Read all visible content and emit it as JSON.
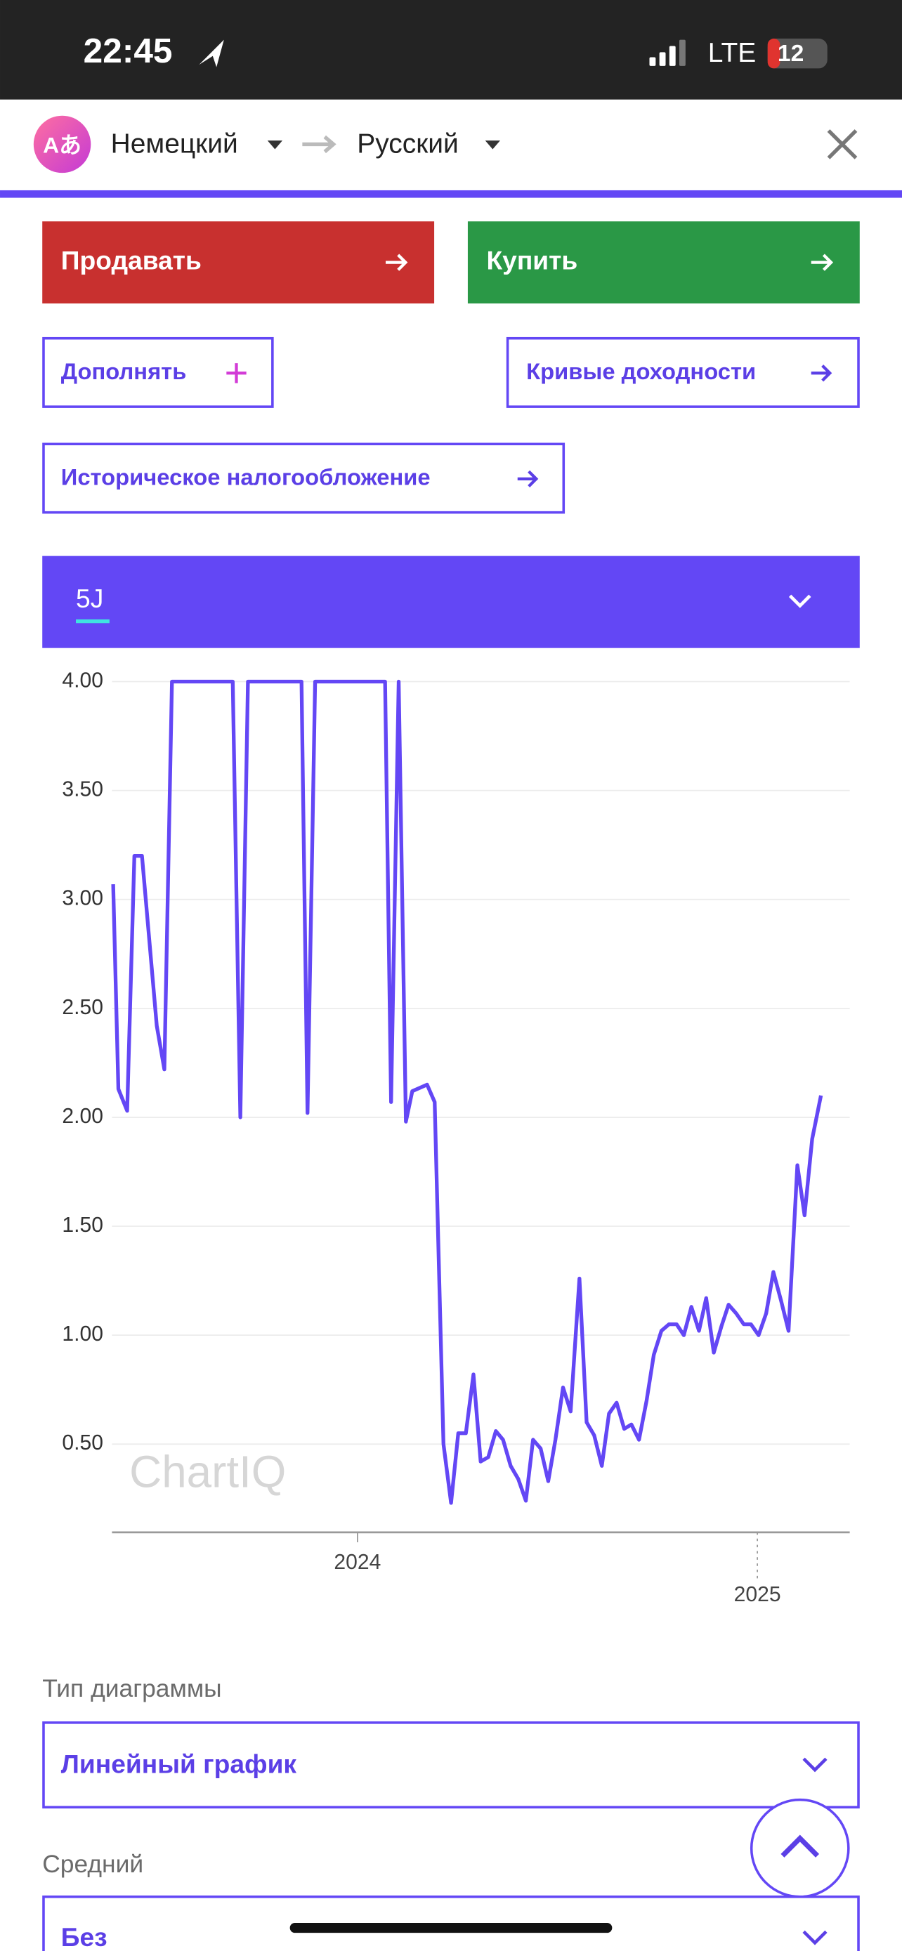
{
  "status_bar": {
    "time": "22:45",
    "network": "LTE",
    "battery": "12"
  },
  "translate_bar": {
    "source_language": "Немецкий",
    "target_language": "Русский"
  },
  "buttons": {
    "sell": "Продавать",
    "buy": "Купить",
    "add": "Дополнять",
    "yield_curves": "Кривые доходности",
    "historical_taxation": "Историческое налогообложение"
  },
  "period_selector": {
    "label": "5J"
  },
  "chart_data": {
    "type": "line",
    "watermark": "ChartIQ",
    "x": [
      2023.389,
      2023.402,
      2023.424,
      2023.442,
      2023.461,
      2023.498,
      2023.517,
      2023.536,
      2023.688,
      2023.707,
      2023.726,
      2023.86,
      2023.875,
      2023.894,
      2024.069,
      2024.084,
      2024.103,
      2024.121,
      2024.137,
      2024.174,
      2024.193,
      2024.215,
      2024.234,
      2024.252,
      2024.271,
      2024.29,
      2024.308,
      2024.327,
      2024.346,
      2024.364,
      2024.383,
      2024.402,
      2024.421,
      2024.439,
      2024.458,
      2024.477,
      2024.495,
      2024.514,
      2024.533,
      2024.555,
      2024.573,
      2024.592,
      2024.611,
      2024.629,
      2024.648,
      2024.667,
      2024.685,
      2024.704,
      2024.723,
      2024.741,
      2024.76,
      2024.779,
      2024.798,
      2024.816,
      2024.835,
      2024.854,
      2024.872,
      2024.891,
      2024.91,
      2024.928,
      2024.947,
      2024.966,
      2024.984,
      2025.003,
      2025.022,
      2025.04,
      2025.059,
      2025.078,
      2025.1,
      2025.118,
      2025.137,
      2025.159
    ],
    "series": [
      {
        "color": "#6347f5",
        "values": [
          3.07,
          2.13,
          2.03,
          3.2,
          3.2,
          2.42,
          2.22,
          4.0,
          4.0,
          2.0,
          4.0,
          4.0,
          2.02,
          4.0,
          4.0,
          2.07,
          4.0,
          1.98,
          2.12,
          2.15,
          2.07,
          0.5,
          0.23,
          0.55,
          0.55,
          0.82,
          0.42,
          0.44,
          0.56,
          0.52,
          0.4,
          0.34,
          0.24,
          0.52,
          0.48,
          0.33,
          0.52,
          0.76,
          0.65,
          1.26,
          0.6,
          0.54,
          0.4,
          0.64,
          0.69,
          0.57,
          0.59,
          0.52,
          0.7,
          0.91,
          1.02,
          1.05,
          1.05,
          1.0,
          1.13,
          1.02,
          1.17,
          0.92,
          1.04,
          1.14,
          1.1,
          1.05,
          1.05,
          1.0,
          1.1,
          1.29,
          1.16,
          1.02,
          1.78,
          1.55,
          1.9,
          2.1
        ]
      }
    ],
    "xlim": [
      2023.386,
      2025.231
    ],
    "xticks": [
      2024,
      2025
    ],
    "ylim": [
      0.095,
      4.0
    ],
    "yticks": [
      {
        "value": 0.5,
        "label": "0.50"
      },
      {
        "value": 1,
        "label": "1.00"
      },
      {
        "value": 1.5,
        "label": "1.50"
      },
      {
        "value": 2,
        "label": "2.00"
      },
      {
        "value": 2.5,
        "label": "2.50"
      },
      {
        "value": 3,
        "label": "3.00"
      },
      {
        "value": 3.5,
        "label": "3.50"
      },
      {
        "value": 4,
        "label": "4.00"
      }
    ],
    "grid": true
  },
  "settings": {
    "chart_type_label": "Тип диаграммы",
    "chart_type_value": "Линейный график",
    "average_label": "Средний",
    "average_value": "Без"
  }
}
